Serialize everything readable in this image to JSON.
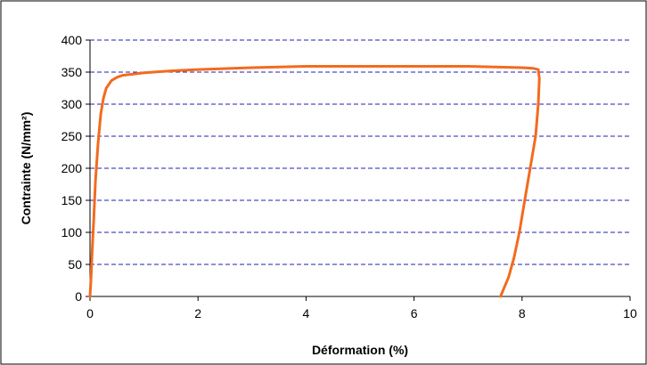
{
  "chart_data": {
    "type": "line",
    "title": "",
    "xlabel": "Déformation (%)",
    "ylabel": "Contrainte (N/mm²)",
    "xlim": [
      0,
      10
    ],
    "ylim": [
      0,
      400
    ],
    "xticks": [
      0,
      2,
      4,
      6,
      8,
      10
    ],
    "yticks": [
      0,
      50,
      100,
      150,
      200,
      250,
      300,
      350,
      400
    ],
    "grid": "horizontal dashed",
    "legend": "none",
    "colors": {
      "series": "#F26B1F",
      "grid": "#1F1FB4",
      "axis": "#000000"
    },
    "series": [
      {
        "x": [
          0.0,
          0.02,
          0.04,
          0.07,
          0.1,
          0.15,
          0.2,
          0.25,
          0.3,
          0.4,
          0.5,
          0.6,
          0.8,
          1.0,
          1.5,
          2.0,
          3.0,
          4.0,
          5.0,
          6.0,
          7.0,
          7.5,
          8.0,
          8.2,
          8.3,
          8.32,
          8.3,
          8.25,
          8.15,
          8.05,
          7.95,
          7.85,
          7.75,
          7.65,
          7.6
        ],
        "y": [
          0,
          30,
          70,
          120,
          180,
          240,
          285,
          310,
          325,
          337,
          342,
          345,
          347,
          349,
          352,
          354,
          357,
          359,
          359,
          359,
          359,
          358,
          357,
          356,
          354,
          340,
          300,
          250,
          200,
          150,
          100,
          60,
          30,
          10,
          0
        ]
      }
    ]
  }
}
